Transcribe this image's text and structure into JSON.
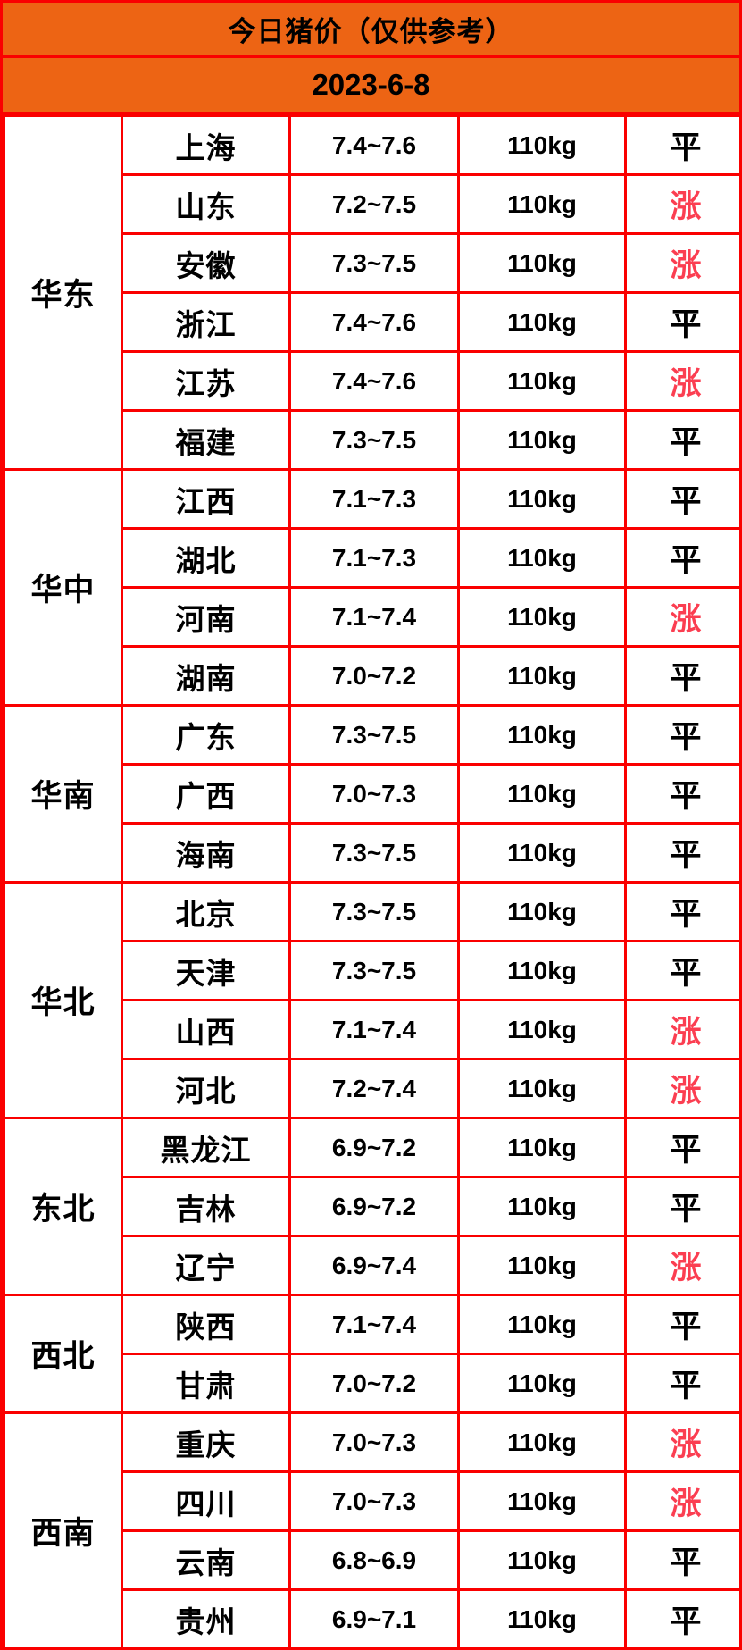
{
  "header": {
    "title": "今日猪价（仅供参考）",
    "date": "2023-6-8"
  },
  "colors": {
    "header_orange": "#ed6414",
    "border_red": "#fa0000",
    "trend_up_red": "#fb3e51",
    "text_black": "#000000"
  },
  "table": {
    "trend_up_value": "涨",
    "trend_flat_value": "平",
    "regions": [
      {
        "name": "华东",
        "rows": [
          {
            "province": "上海",
            "price": "7.4~7.6",
            "weight": "110kg",
            "trend": "平"
          },
          {
            "province": "山东",
            "price": "7.2~7.5",
            "weight": "110kg",
            "trend": "涨"
          },
          {
            "province": "安徽",
            "price": "7.3~7.5",
            "weight": "110kg",
            "trend": "涨"
          },
          {
            "province": "浙江",
            "price": "7.4~7.6",
            "weight": "110kg",
            "trend": "平"
          },
          {
            "province": "江苏",
            "price": "7.4~7.6",
            "weight": "110kg",
            "trend": "涨"
          },
          {
            "province": "福建",
            "price": "7.3~7.5",
            "weight": "110kg",
            "trend": "平"
          }
        ]
      },
      {
        "name": "华中",
        "rows": [
          {
            "province": "江西",
            "price": "7.1~7.3",
            "weight": "110kg",
            "trend": "平"
          },
          {
            "province": "湖北",
            "price": "7.1~7.3",
            "weight": "110kg",
            "trend": "平"
          },
          {
            "province": "河南",
            "price": "7.1~7.4",
            "weight": "110kg",
            "trend": "涨"
          },
          {
            "province": "湖南",
            "price": "7.0~7.2",
            "weight": "110kg",
            "trend": "平"
          }
        ]
      },
      {
        "name": "华南",
        "rows": [
          {
            "province": "广东",
            "price": "7.3~7.5",
            "weight": "110kg",
            "trend": "平"
          },
          {
            "province": "广西",
            "price": "7.0~7.3",
            "weight": "110kg",
            "trend": "平"
          },
          {
            "province": "海南",
            "price": "7.3~7.5",
            "weight": "110kg",
            "trend": "平"
          }
        ]
      },
      {
        "name": "华北",
        "rows": [
          {
            "province": "北京",
            "price": "7.3~7.5",
            "weight": "110kg",
            "trend": "平"
          },
          {
            "province": "天津",
            "price": "7.3~7.5",
            "weight": "110kg",
            "trend": "平"
          },
          {
            "province": "山西",
            "price": "7.1~7.4",
            "weight": "110kg",
            "trend": "涨"
          },
          {
            "province": "河北",
            "price": "7.2~7.4",
            "weight": "110kg",
            "trend": "涨"
          }
        ]
      },
      {
        "name": "东北",
        "rows": [
          {
            "province": "黑龙江",
            "price": "6.9~7.2",
            "weight": "110kg",
            "trend": "平"
          },
          {
            "province": "吉林",
            "price": "6.9~7.2",
            "weight": "110kg",
            "trend": "平"
          },
          {
            "province": "辽宁",
            "price": "6.9~7.4",
            "weight": "110kg",
            "trend": "涨"
          }
        ]
      },
      {
        "name": "西北",
        "rows": [
          {
            "province": "陕西",
            "price": "7.1~7.4",
            "weight": "110kg",
            "trend": "平"
          },
          {
            "province": "甘肃",
            "price": "7.0~7.2",
            "weight": "110kg",
            "trend": "平"
          }
        ]
      },
      {
        "name": "西南",
        "rows": [
          {
            "province": "重庆",
            "price": "7.0~7.3",
            "weight": "110kg",
            "trend": "涨"
          },
          {
            "province": "四川",
            "price": "7.0~7.3",
            "weight": "110kg",
            "trend": "涨"
          },
          {
            "province": "云南",
            "price": "6.8~6.9",
            "weight": "110kg",
            "trend": "平"
          },
          {
            "province": "贵州",
            "price": "6.9~7.1",
            "weight": "110kg",
            "trend": "平"
          }
        ]
      }
    ]
  },
  "chart_data": {
    "type": "table",
    "title": "今日猪价（仅供参考）",
    "date": "2023-6-8",
    "rows": [
      [
        "华东",
        "上海",
        "7.4~7.6",
        "110kg",
        "平"
      ],
      [
        "华东",
        "山东",
        "7.2~7.5",
        "110kg",
        "涨"
      ],
      [
        "华东",
        "安徽",
        "7.3~7.5",
        "110kg",
        "涨"
      ],
      [
        "华东",
        "浙江",
        "7.4~7.6",
        "110kg",
        "平"
      ],
      [
        "华东",
        "江苏",
        "7.4~7.6",
        "110kg",
        "涨"
      ],
      [
        "华东",
        "福建",
        "7.3~7.5",
        "110kg",
        "平"
      ],
      [
        "华中",
        "江西",
        "7.1~7.3",
        "110kg",
        "平"
      ],
      [
        "华中",
        "湖北",
        "7.1~7.3",
        "110kg",
        "平"
      ],
      [
        "华中",
        "河南",
        "7.1~7.4",
        "110kg",
        "涨"
      ],
      [
        "华中",
        "湖南",
        "7.0~7.2",
        "110kg",
        "平"
      ],
      [
        "华南",
        "广东",
        "7.3~7.5",
        "110kg",
        "平"
      ],
      [
        "华南",
        "广西",
        "7.0~7.3",
        "110kg",
        "平"
      ],
      [
        "华南",
        "海南",
        "7.3~7.5",
        "110kg",
        "平"
      ],
      [
        "华北",
        "北京",
        "7.3~7.5",
        "110kg",
        "平"
      ],
      [
        "华北",
        "天津",
        "7.3~7.5",
        "110kg",
        "平"
      ],
      [
        "华北",
        "山西",
        "7.1~7.4",
        "110kg",
        "涨"
      ],
      [
        "华北",
        "河北",
        "7.2~7.4",
        "110kg",
        "涨"
      ],
      [
        "东北",
        "黑龙江",
        "6.9~7.2",
        "110kg",
        "平"
      ],
      [
        "东北",
        "吉林",
        "6.9~7.2",
        "110kg",
        "平"
      ],
      [
        "东北",
        "辽宁",
        "6.9~7.4",
        "110kg",
        "涨"
      ],
      [
        "西北",
        "陕西",
        "7.1~7.4",
        "110kg",
        "平"
      ],
      [
        "西北",
        "甘肃",
        "7.0~7.2",
        "110kg",
        "平"
      ],
      [
        "西南",
        "重庆",
        "7.0~7.3",
        "110kg",
        "涨"
      ],
      [
        "西南",
        "四川",
        "7.0~7.3",
        "110kg",
        "涨"
      ],
      [
        "西南",
        "云南",
        "6.8~6.9",
        "110kg",
        "平"
      ],
      [
        "西南",
        "贵州",
        "6.9~7.1",
        "110kg",
        "平"
      ]
    ]
  }
}
